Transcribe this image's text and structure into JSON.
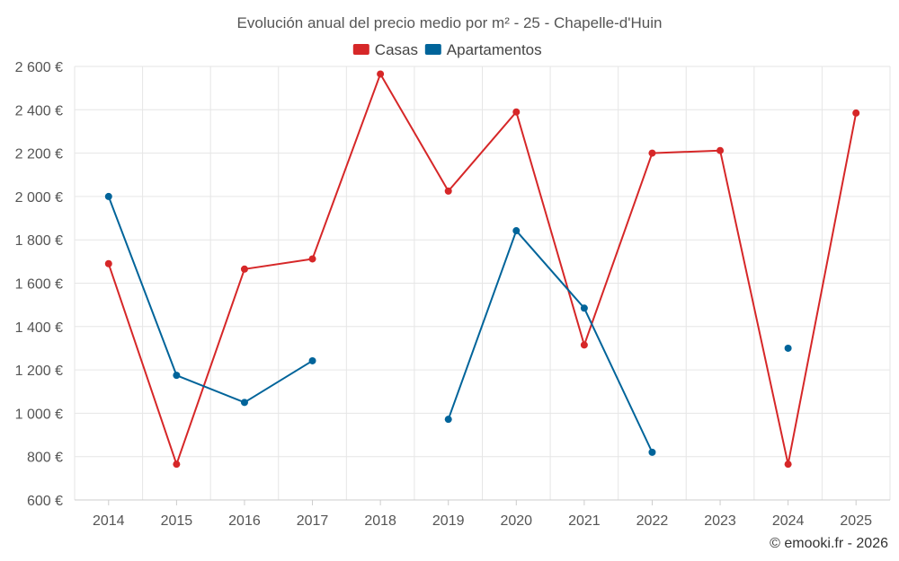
{
  "chart_data": {
    "type": "line",
    "title": "Evolución anual del precio medio por m² - 25 - Chapelle-d'Huin",
    "categories": [
      "2014",
      "2015",
      "2016",
      "2017",
      "2018",
      "2019",
      "2020",
      "2021",
      "2022",
      "2023",
      "2024",
      "2025"
    ],
    "series": [
      {
        "name": "Casas",
        "color": "#d62728",
        "values": [
          1690,
          765,
          1665,
          1712,
          2565,
          2025,
          2390,
          1315,
          2200,
          2212,
          765,
          2385
        ]
      },
      {
        "name": "Apartamentos",
        "color": "#00649a",
        "values": [
          2000,
          1175,
          1050,
          1242,
          null,
          972,
          1842,
          1485,
          820,
          null,
          1300,
          null
        ]
      }
    ],
    "ylim": [
      600,
      2600
    ],
    "yticks": [
      600,
      800,
      1000,
      1200,
      1400,
      1600,
      1800,
      2000,
      2200,
      2400,
      2600
    ],
    "ytick_labels": [
      "600 €",
      "800 €",
      "1 000 €",
      "1 200 €",
      "1 400 €",
      "1 600 €",
      "1 800 €",
      "2 000 €",
      "2 200 €",
      "2 400 €",
      "2 600 €"
    ],
    "xlabel": "",
    "ylabel": "",
    "grid": true,
    "legend_position": "top-center",
    "credit": "© emooki.fr - 2026"
  }
}
